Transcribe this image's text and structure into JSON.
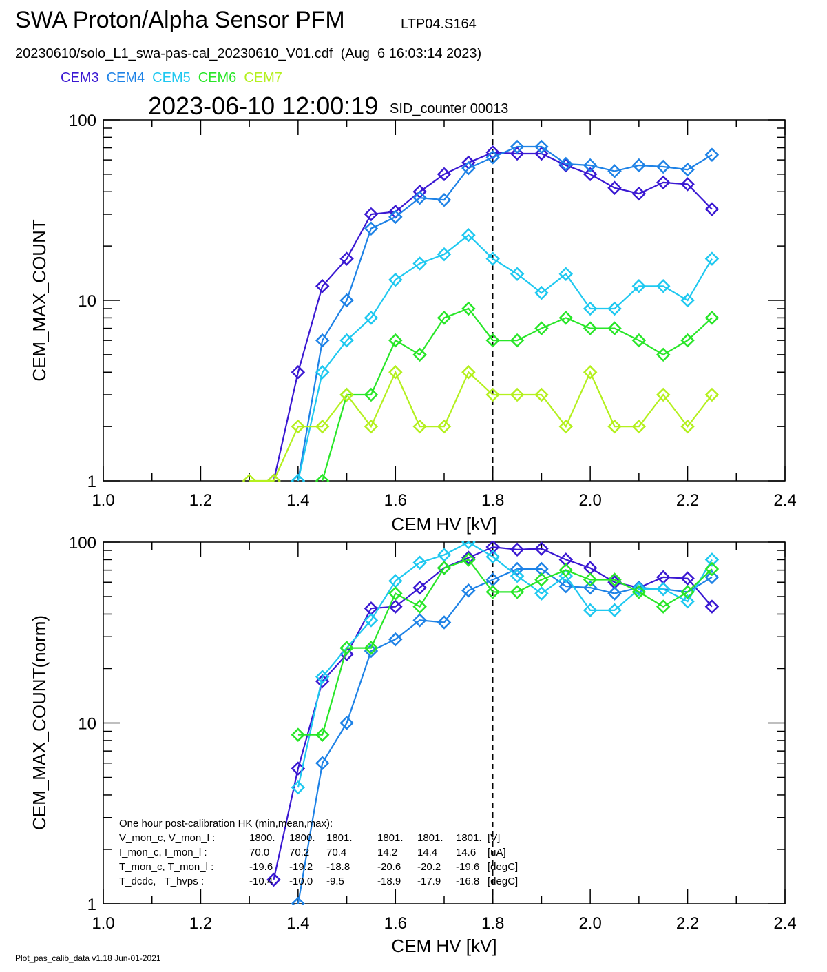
{
  "header": {
    "title": "SWA Proton/Alpha Sensor PFM",
    "model": "LTP04.S164",
    "file": "20230610/solo_L1_swa-pas-cal_20230610_V01.cdf  (Aug  6 16:03:14 2023)",
    "timestamp": "2023-06-10 12:00:19",
    "counter": "SID_counter 00013"
  },
  "chart_data": [
    {
      "type": "line",
      "ylabel": "CEM_MAX_COUNT",
      "xlabel": "CEM HV [kV]",
      "log_y": true,
      "reference_x": 1.8,
      "x": [
        1.3,
        1.35,
        1.4,
        1.45,
        1.5,
        1.55,
        1.6,
        1.65,
        1.7,
        1.75,
        1.8,
        1.85,
        1.9,
        1.95,
        2.0,
        2.05,
        2.1,
        2.15,
        2.2,
        2.25
      ],
      "xlim": [
        1.0,
        2.4
      ],
      "ylim": [
        1,
        100
      ],
      "xticks": [
        {
          "value": 1.0,
          "label": "1.0"
        },
        1.2,
        1.4,
        1.6,
        1.8,
        {
          "value": 2.0,
          "label": "2.0"
        },
        2.2,
        2.4
      ],
      "yticks": [
        1,
        10,
        100
      ],
      "series": [
        {
          "name": "CEM3",
          "color": "#3a18d2",
          "values": [
            null,
            1,
            4,
            12,
            17,
            30,
            31,
            40,
            50,
            58,
            66,
            65,
            65,
            56,
            50,
            42,
            39,
            45,
            44,
            32
          ]
        },
        {
          "name": "CEM4",
          "color": "#1e82e6",
          "values": [
            null,
            null,
            1,
            6,
            10,
            25,
            29,
            37,
            36,
            54,
            62,
            71,
            71,
            57,
            56,
            52,
            56,
            55,
            53,
            64
          ]
        },
        {
          "name": "CEM5",
          "color": "#1ec8f0",
          "values": [
            null,
            null,
            1,
            4,
            6,
            8,
            13,
            16,
            18,
            23,
            17,
            14,
            11,
            14,
            9,
            9,
            12,
            12,
            10,
            17
          ]
        },
        {
          "name": "CEM6",
          "color": "#28e628",
          "values": [
            null,
            null,
            null,
            1,
            3,
            3,
            6,
            5,
            8,
            9,
            6,
            6,
            7,
            8,
            7,
            7,
            6,
            5,
            6,
            8
          ]
        },
        {
          "name": "CEM7",
          "color": "#b4f01e",
          "values": [
            1,
            1,
            2,
            2,
            3,
            2,
            4,
            2,
            2,
            4,
            3,
            3,
            3,
            2,
            4,
            2,
            2,
            3,
            2,
            3
          ]
        }
      ]
    },
    {
      "type": "line",
      "ylabel": "CEM_MAX_COUNT(norm)",
      "xlabel": "CEM HV [kV]",
      "log_y": true,
      "reference_x": 1.8,
      "x": [
        1.3,
        1.35,
        1.4,
        1.45,
        1.5,
        1.55,
        1.6,
        1.65,
        1.7,
        1.75,
        1.8,
        1.85,
        1.9,
        1.95,
        2.0,
        2.05,
        2.1,
        2.15,
        2.2,
        2.25
      ],
      "xlim": [
        1.0,
        2.4
      ],
      "ylim": [
        1,
        100
      ],
      "xticks": [
        {
          "value": 1.0,
          "label": "1.0"
        },
        1.2,
        1.4,
        1.6,
        1.8,
        {
          "value": 2.0,
          "label": "2.0"
        },
        2.2,
        2.4
      ],
      "yticks": [
        1,
        10,
        100
      ],
      "series": [
        {
          "color": "#3a18d2",
          "values": [
            null,
            1.36,
            5.6,
            17,
            24,
            43,
            44,
            56,
            72,
            82,
            94,
            91,
            92,
            80,
            72,
            60,
            56,
            64,
            63,
            44
          ]
        },
        {
          "color": "#1e82e6",
          "values": [
            null,
            null,
            1,
            6,
            10,
            25,
            29,
            37,
            36,
            54,
            62,
            71,
            71,
            57,
            56,
            52,
            56,
            55,
            53,
            64
          ]
        },
        {
          "color": "#1ec8f0",
          "values": [
            null,
            null,
            4.4,
            18,
            26,
            37,
            61,
            77,
            85,
            100,
            83,
            65,
            52,
            65,
            42,
            42,
            55,
            55,
            47,
            80
          ]
        },
        {
          "color": "#28e628",
          "values": [
            null,
            null,
            8.6,
            8.6,
            26,
            26,
            52,
            44,
            72,
            80,
            53,
            53,
            62,
            70,
            62,
            62,
            53,
            44,
            53,
            71
          ]
        }
      ],
      "hk": {
        "heading": "One hour post-calibration HK (min,mean,max):",
        "rows": [
          [
            "V_mon_c, V_mon_l :",
            "1800.",
            "1800.",
            "1801.",
            "1801.",
            "1801.",
            "1801.",
            "[V]"
          ],
          [
            "I_mon_c, I_mon_l :",
            "70.0",
            "70.2",
            "70.4",
            "14.2",
            "14.4",
            "14.6",
            "[uA]"
          ],
          [
            "T_mon_c, T_mon_l :",
            "-19.6",
            "-19.2",
            "-18.8",
            "-20.6",
            "-20.2",
            "-19.6",
            "[degC]"
          ],
          [
            "T_dcdc,   T_hvps :",
            "-10.4",
            "-10.0",
            "-9.5",
            "-18.9",
            "-17.9",
            "-16.8",
            "[degC]"
          ]
        ]
      }
    }
  ],
  "footer": "Plot_pas_calib_data v1.18 Jun-01-2021"
}
